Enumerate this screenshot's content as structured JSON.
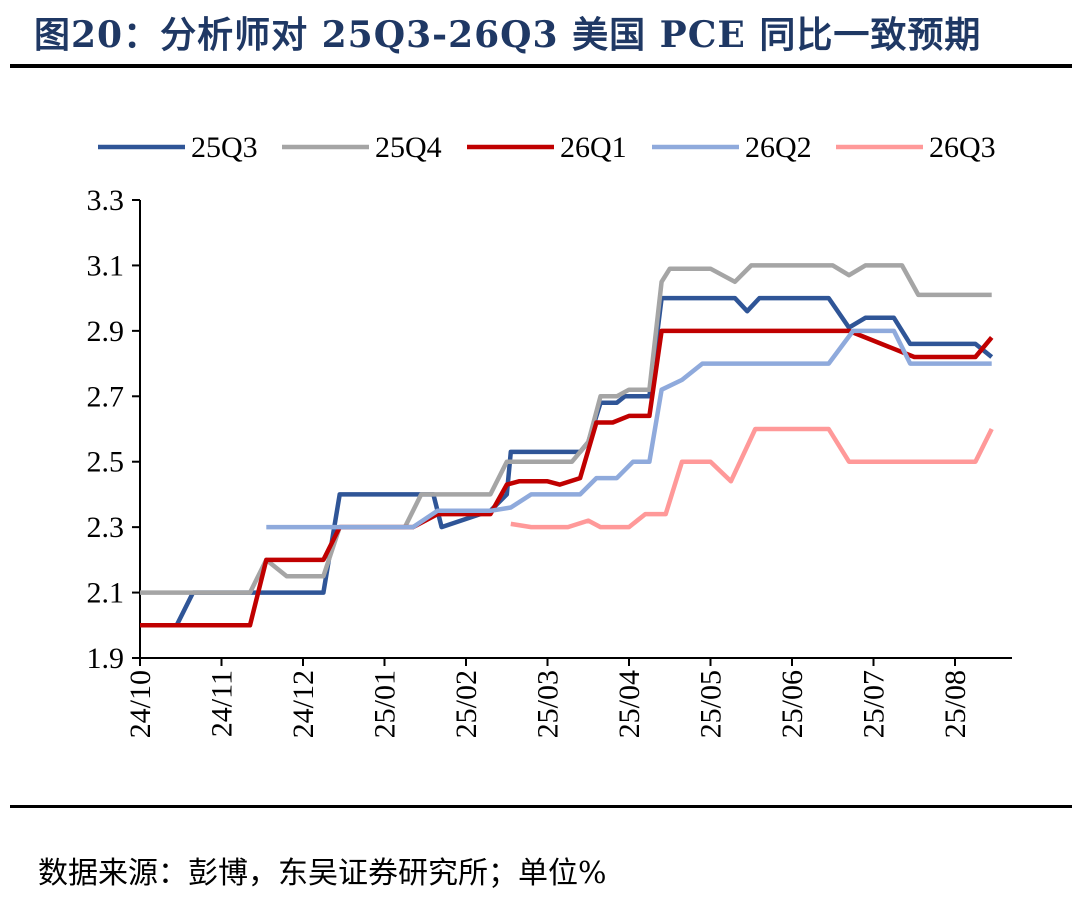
{
  "header": {
    "title": "图20：分析师对 25Q3-26Q3 美国 PCE 同比一致预期"
  },
  "footer": {
    "source": "数据来源：彭博，东吴证券研究所；单位%"
  },
  "chart_data": {
    "type": "line",
    "title": "",
    "xlabel": "",
    "ylabel": "",
    "ylim": [
      1.9,
      3.3
    ],
    "yticks": [
      "1.9",
      "2.1",
      "2.3",
      "2.5",
      "2.7",
      "2.9",
      "3.1",
      "3.3"
    ],
    "xticks": [
      "24/10",
      "24/11",
      "24/12",
      "25/01",
      "25/02",
      "25/03",
      "25/04",
      "25/05",
      "25/06",
      "25/07",
      "25/08"
    ],
    "legend_position": "top",
    "grid": false,
    "series": [
      {
        "name": "25Q3",
        "color": "#2f5597",
        "points": [
          [
            0,
            2.0
          ],
          [
            0.45,
            2.0
          ],
          [
            0.65,
            2.1
          ],
          [
            2.25,
            2.1
          ],
          [
            2.45,
            2.4
          ],
          [
            3.6,
            2.4
          ],
          [
            3.7,
            2.3
          ],
          [
            4.3,
            2.35
          ],
          [
            4.5,
            2.4
          ],
          [
            4.5,
            2.4
          ],
          [
            4.55,
            2.53
          ],
          [
            5.4,
            2.53
          ],
          [
            5.5,
            2.56
          ],
          [
            5.65,
            2.68
          ],
          [
            5.85,
            2.68
          ],
          [
            5.95,
            2.7
          ],
          [
            6.25,
            2.7
          ],
          [
            6.4,
            3.0
          ],
          [
            6.75,
            3.0
          ],
          [
            7.1,
            3.0
          ],
          [
            7.3,
            3.0
          ],
          [
            7.45,
            2.96
          ],
          [
            7.6,
            3.0
          ],
          [
            7.95,
            3.0
          ],
          [
            8.45,
            3.0
          ],
          [
            8.7,
            2.91
          ],
          [
            8.9,
            2.94
          ],
          [
            9.25,
            2.94
          ],
          [
            9.45,
            2.86
          ],
          [
            10.25,
            2.86
          ],
          [
            10.45,
            2.82
          ]
        ]
      },
      {
        "name": "25Q4",
        "color": "#a5a5a5",
        "points": [
          [
            0,
            2.1
          ],
          [
            1.35,
            2.1
          ],
          [
            1.55,
            2.2
          ],
          [
            1.8,
            2.15
          ],
          [
            2.25,
            2.15
          ],
          [
            2.45,
            2.3
          ],
          [
            3.25,
            2.3
          ],
          [
            3.45,
            2.4
          ],
          [
            4.3,
            2.4
          ],
          [
            4.5,
            2.5
          ],
          [
            5.3,
            2.5
          ],
          [
            5.5,
            2.56
          ],
          [
            5.65,
            2.7
          ],
          [
            5.85,
            2.7
          ],
          [
            6.0,
            2.72
          ],
          [
            6.25,
            2.72
          ],
          [
            6.4,
            3.05
          ],
          [
            6.5,
            3.09
          ],
          [
            7.0,
            3.09
          ],
          [
            7.3,
            3.05
          ],
          [
            7.5,
            3.1
          ],
          [
            8.5,
            3.1
          ],
          [
            8.7,
            3.07
          ],
          [
            8.9,
            3.1
          ],
          [
            9.35,
            3.1
          ],
          [
            9.55,
            3.01
          ],
          [
            10.45,
            3.01
          ]
        ]
      },
      {
        "name": "26Q1",
        "color": "#c00000",
        "points": [
          [
            0,
            2.0
          ],
          [
            1.35,
            2.0
          ],
          [
            1.55,
            2.2
          ],
          [
            2.25,
            2.2
          ],
          [
            2.45,
            2.3
          ],
          [
            3.35,
            2.3
          ],
          [
            3.65,
            2.34
          ],
          [
            4.3,
            2.34
          ],
          [
            4.5,
            2.43
          ],
          [
            4.65,
            2.44
          ],
          [
            5.0,
            2.44
          ],
          [
            5.15,
            2.43
          ],
          [
            5.4,
            2.45
          ],
          [
            5.6,
            2.62
          ],
          [
            5.8,
            2.62
          ],
          [
            6.0,
            2.64
          ],
          [
            6.25,
            2.64
          ],
          [
            6.4,
            2.9
          ],
          [
            7.0,
            2.9
          ],
          [
            8.7,
            2.9
          ],
          [
            9.5,
            2.82
          ],
          [
            10.25,
            2.82
          ],
          [
            10.45,
            2.88
          ]
        ]
      },
      {
        "name": "26Q2",
        "color": "#8faadc",
        "points": [
          [
            1.55,
            2.3
          ],
          [
            3.35,
            2.3
          ],
          [
            3.65,
            2.35
          ],
          [
            4.3,
            2.35
          ],
          [
            4.55,
            2.36
          ],
          [
            4.8,
            2.4
          ],
          [
            5.4,
            2.4
          ],
          [
            5.6,
            2.45
          ],
          [
            5.85,
            2.45
          ],
          [
            6.05,
            2.5
          ],
          [
            6.25,
            2.5
          ],
          [
            6.4,
            2.72
          ],
          [
            6.65,
            2.75
          ],
          [
            6.9,
            2.8
          ],
          [
            8.45,
            2.8
          ],
          [
            8.75,
            2.9
          ],
          [
            9.25,
            2.9
          ],
          [
            9.45,
            2.8
          ],
          [
            10.45,
            2.8
          ]
        ]
      },
      {
        "name": "26Q3",
        "color": "#ff9999",
        "points": [
          [
            4.55,
            2.31
          ],
          [
            4.8,
            2.3
          ],
          [
            5.25,
            2.3
          ],
          [
            5.5,
            2.32
          ],
          [
            5.65,
            2.3
          ],
          [
            6.0,
            2.3
          ],
          [
            6.2,
            2.34
          ],
          [
            6.45,
            2.34
          ],
          [
            6.65,
            2.5
          ],
          [
            7.0,
            2.5
          ],
          [
            7.25,
            2.44
          ],
          [
            7.55,
            2.6
          ],
          [
            8.0,
            2.6
          ],
          [
            8.45,
            2.6
          ],
          [
            8.7,
            2.5
          ],
          [
            9.25,
            2.5
          ],
          [
            10.25,
            2.5
          ],
          [
            10.45,
            2.6
          ]
        ]
      }
    ]
  }
}
